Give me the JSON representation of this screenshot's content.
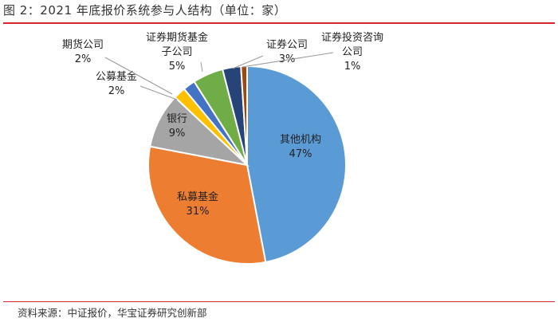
{
  "figure_title": "图 2：2021 年底报价系统参与人结构（单位：家）",
  "source": "资料来源：中证报价，华宝证券研究创新部",
  "colors": {
    "accent_rule": "#d6262e"
  },
  "chart_data": {
    "type": "pie",
    "title": "",
    "slices": [
      {
        "label": "其他机构",
        "value": 47,
        "value_label": "47%",
        "color": "#5b9bd5"
      },
      {
        "label": "私募基金",
        "value": 31,
        "value_label": "31%",
        "color": "#ed7d31"
      },
      {
        "label": "银行",
        "value": 9,
        "value_label": "9%",
        "color": "#a5a5a5"
      },
      {
        "label": "公募基金",
        "value": 2,
        "value_label": "2%",
        "color": "#ffc000"
      },
      {
        "label": "期货公司",
        "value": 2,
        "value_label": "2%",
        "color": "#4472c4"
      },
      {
        "label": "证券期货基金子公司",
        "value": 5,
        "value_label": "5%",
        "color": "#70ad47"
      },
      {
        "label": "证券公司",
        "value": 3,
        "value_label": "3%",
        "color": "#264478"
      },
      {
        "label": "证券投资咨询公司",
        "value": 1,
        "value_label": "1%",
        "color": "#9e480e"
      }
    ]
  }
}
